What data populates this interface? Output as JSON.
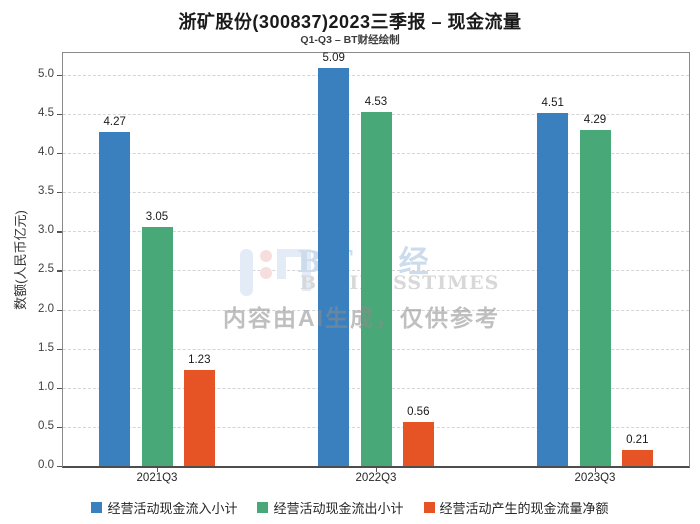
{
  "chart_data": {
    "type": "bar",
    "title": "浙矿股份(300837)2023三季报 – 现金流量",
    "subtitle": "Q1-Q3 – BT财经绘制",
    "ylabel": "数额(人民币亿元)",
    "xlabel": "",
    "categories": [
      "2021Q3",
      "2022Q3",
      "2023Q3"
    ],
    "series": [
      {
        "name": "经营活动现金流入小计",
        "color": "#3a80bf",
        "values": [
          4.27,
          5.09,
          4.51
        ]
      },
      {
        "name": "经营活动现金流出小计",
        "color": "#48a878",
        "values": [
          3.05,
          4.53,
          4.29
        ]
      },
      {
        "name": "经营活动产生的现金流量净额",
        "color": "#e65324",
        "values": [
          1.23,
          0.56,
          0.21
        ]
      }
    ],
    "ylim": [
      0,
      5.0
    ],
    "ytick_step": 0.5,
    "grid": "horizontal-dashed",
    "legend_position": "bottom",
    "value_label_decimals": 2
  },
  "watermark": {
    "brand": "BT财经",
    "brand_sub": "BUSINESSTIMES",
    "ai_note": "内容由AI生成，仅供参考",
    "logo": "bt-logo"
  }
}
